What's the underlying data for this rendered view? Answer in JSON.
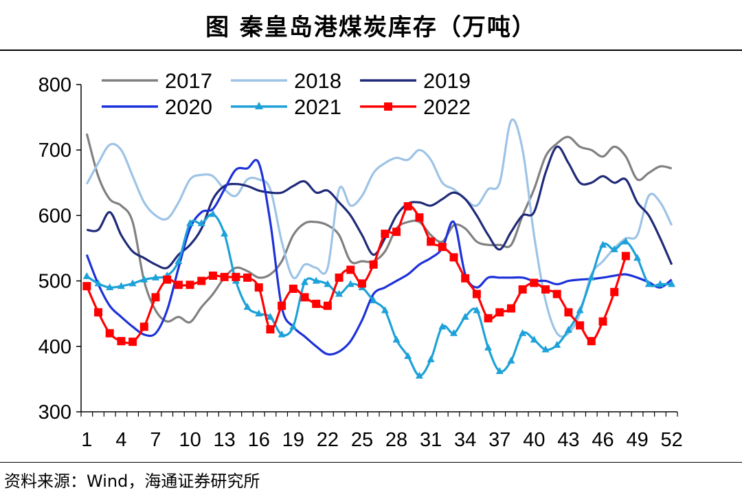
{
  "title": "图  秦皇岛港煤炭库存（万吨）",
  "source": "资料来源：Wind，海通证券研究所",
  "chart_data": {
    "type": "line",
    "title": "图  秦皇岛港煤炭库存（万吨）",
    "xlabel": "",
    "ylabel": "",
    "xlim": [
      1,
      52
    ],
    "ylim": [
      300,
      800
    ],
    "yticks": [
      300,
      400,
      500,
      600,
      700,
      800
    ],
    "xticks": [
      1,
      4,
      7,
      10,
      13,
      16,
      19,
      22,
      25,
      28,
      31,
      34,
      37,
      40,
      43,
      46,
      49,
      52
    ],
    "legend_position": "top-left",
    "series": [
      {
        "name": "2017",
        "color": "#808080",
        "marker": "none",
        "values": [
          725,
          660,
          625,
          615,
          590,
          500,
          455,
          438,
          445,
          437,
          460,
          480,
          505,
          520,
          515,
          505,
          510,
          530,
          570,
          588,
          590,
          585,
          570,
          530,
          530,
          530,
          545,
          580,
          590,
          590,
          570,
          560,
          585,
          580,
          560,
          555,
          555,
          555,
          600,
          640,
          690,
          710,
          720,
          705,
          700,
          690,
          705,
          690,
          655,
          665,
          675,
          672
        ]
      },
      {
        "name": "2018",
        "color": "#9dc3e6",
        "marker": "none",
        "values": [
          648,
          680,
          708,
          700,
          660,
          620,
          600,
          595,
          620,
          655,
          662,
          660,
          640,
          630,
          655,
          655,
          640,
          560,
          505,
          525,
          520,
          520,
          640,
          615,
          630,
          665,
          680,
          688,
          685,
          700,
          685,
          650,
          640,
          625,
          615,
          640,
          650,
          745,
          700,
          570,
          470,
          420,
          420,
          450,
          510,
          530,
          550,
          565,
          570,
          630,
          620,
          585
        ]
      },
      {
        "name": "2019",
        "color": "#1f2a78",
        "marker": "none",
        "values": [
          578,
          578,
          605,
          570,
          545,
          535,
          525,
          520,
          540,
          555,
          580,
          625,
          645,
          648,
          645,
          638,
          635,
          635,
          645,
          652,
          635,
          638,
          620,
          600,
          570,
          540,
          565,
          600,
          618,
          620,
          615,
          625,
          635,
          625,
          600,
          570,
          548,
          575,
          600,
          605,
          665,
          705,
          680,
          650,
          650,
          660,
          650,
          655,
          620,
          600,
          565,
          525
        ]
      },
      {
        "name": "2020",
        "color": "#1c31d9",
        "marker": "none",
        "values": [
          540,
          495,
          462,
          445,
          430,
          418,
          420,
          455,
          520,
          580,
          605,
          610,
          640,
          670,
          672,
          680,
          590,
          460,
          430,
          415,
          400,
          388,
          392,
          408,
          440,
          480,
          490,
          500,
          510,
          525,
          535,
          550,
          590,
          510,
          490,
          505,
          505,
          505,
          505,
          500,
          500,
          495,
          500,
          502,
          503,
          505,
          508,
          510,
          505,
          498,
          490,
          502
        ]
      },
      {
        "name": "2021",
        "color": "#1da1d8",
        "marker": "triangle",
        "values": [
          507,
          496,
          490,
          492,
          496,
          502,
          505,
          508,
          530,
          588,
          588,
          602,
          572,
          500,
          460,
          450,
          445,
          418,
          430,
          498,
          500,
          495,
          480,
          495,
          490,
          470,
          455,
          410,
          385,
          355,
          380,
          430,
          420,
          445,
          455,
          398,
          362,
          378,
          420,
          410,
          395,
          402,
          425,
          455,
          505,
          555,
          548,
          560,
          535,
          495,
          495,
          495
        ]
      },
      {
        "name": "2022",
        "color": "#ff0000",
        "marker": "square",
        "values": [
          492,
          452,
          420,
          408,
          407,
          430,
          475,
          502,
          494,
          494,
          500,
          508,
          506,
          506,
          505,
          490,
          426,
          462,
          488,
          475,
          465,
          462,
          505,
          517,
          496,
          525,
          572,
          575,
          614,
          597,
          560,
          552,
          536,
          504,
          480,
          443,
          452,
          458,
          487,
          497,
          487,
          480,
          452,
          432,
          408,
          438,
          483,
          538
        ]
      }
    ]
  }
}
